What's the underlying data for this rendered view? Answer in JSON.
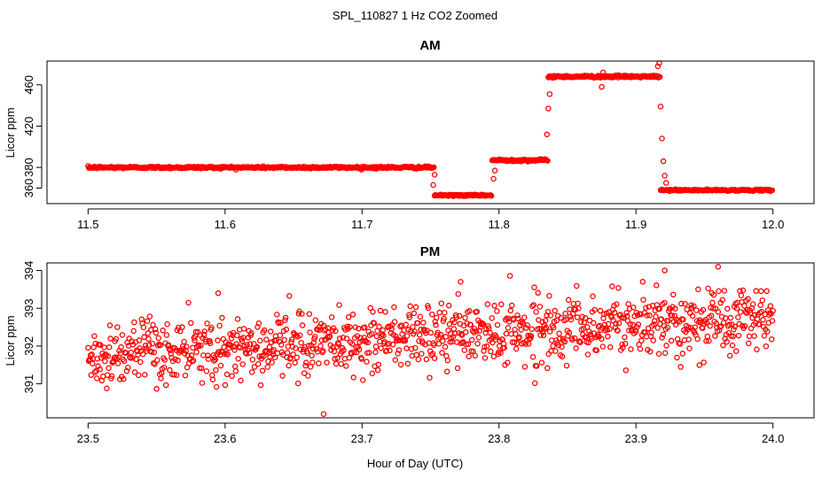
{
  "figure_title": "SPL_110827  1 Hz CO2 Zoomed",
  "shared_xlabel": "Hour of Day (UTC)",
  "colors": {
    "points": "#ff0000",
    "frame": "#000000",
    "background": "#ffffff"
  },
  "chart_data": [
    {
      "type": "scatter",
      "title": "AM",
      "xlabel": "",
      "ylabel": "Licor ppm",
      "xlim": [
        11.47,
        12.03
      ],
      "ylim": [
        345,
        483
      ],
      "xticks": [
        11.5,
        11.6,
        11.7,
        11.8,
        11.9,
        12.0
      ],
      "xtick_labels": [
        "11.5",
        "11.6",
        "11.7",
        "11.8",
        "11.9",
        "12.0"
      ],
      "yticks": [
        360,
        380,
        420,
        460
      ],
      "ytick_labels": [
        "360",
        "380",
        "420",
        "460"
      ],
      "grid": false,
      "marker": "open-circle",
      "segments": [
        {
          "x_start": 11.5,
          "x_end": 11.753,
          "level": 380,
          "noise": 1.5
        },
        {
          "x_start": 11.753,
          "x_end": 11.795,
          "level": 353,
          "noise": 1.0
        },
        {
          "x_start": 11.795,
          "x_end": 11.836,
          "level": 387,
          "noise": 1.5
        },
        {
          "x_start": 11.836,
          "x_end": 11.918,
          "level": 468,
          "noise": 1.5
        },
        {
          "x_start": 11.918,
          "x_end": 12.0,
          "level": 358,
          "noise": 1.0
        }
      ],
      "outliers": [
        {
          "x": 11.752,
          "y": 363
        },
        {
          "x": 11.753,
          "y": 373
        },
        {
          "x": 11.796,
          "y": 369
        },
        {
          "x": 11.797,
          "y": 377
        },
        {
          "x": 11.835,
          "y": 412
        },
        {
          "x": 11.836,
          "y": 437
        },
        {
          "x": 11.837,
          "y": 451
        },
        {
          "x": 11.875,
          "y": 458
        },
        {
          "x": 11.876,
          "y": 472
        },
        {
          "x": 11.916,
          "y": 478
        },
        {
          "x": 11.917,
          "y": 481
        },
        {
          "x": 11.918,
          "y": 439
        },
        {
          "x": 11.919,
          "y": 408
        },
        {
          "x": 11.92,
          "y": 386
        },
        {
          "x": 11.921,
          "y": 372
        },
        {
          "x": 11.922,
          "y": 365
        }
      ]
    },
    {
      "type": "scatter",
      "title": "PM",
      "xlabel": "Hour of Day (UTC)",
      "ylabel": "Licor ppm",
      "xlim": [
        23.47,
        24.03
      ],
      "ylim": [
        390.1,
        394.2
      ],
      "xticks": [
        23.5,
        23.6,
        23.7,
        23.8,
        23.9,
        24.0
      ],
      "xtick_labels": [
        "23.5",
        "23.6",
        "23.7",
        "23.8",
        "23.9",
        "24.0"
      ],
      "yticks": [
        391,
        392,
        393,
        394
      ],
      "ytick_labels": [
        "391",
        "392",
        "393",
        "394"
      ],
      "grid": false,
      "marker": "open-circle",
      "trend": {
        "x_start": 23.5,
        "x_end": 24.0,
        "y_start": 391.7,
        "y_end": 392.8,
        "noise": 0.42,
        "points": 1100
      },
      "outliers": [
        {
          "x": 23.672,
          "y": 390.2
        },
        {
          "x": 23.96,
          "y": 394.1
        },
        {
          "x": 23.595,
          "y": 393.4
        },
        {
          "x": 23.921,
          "y": 394.0
        },
        {
          "x": 23.772,
          "y": 393.7
        }
      ]
    }
  ]
}
